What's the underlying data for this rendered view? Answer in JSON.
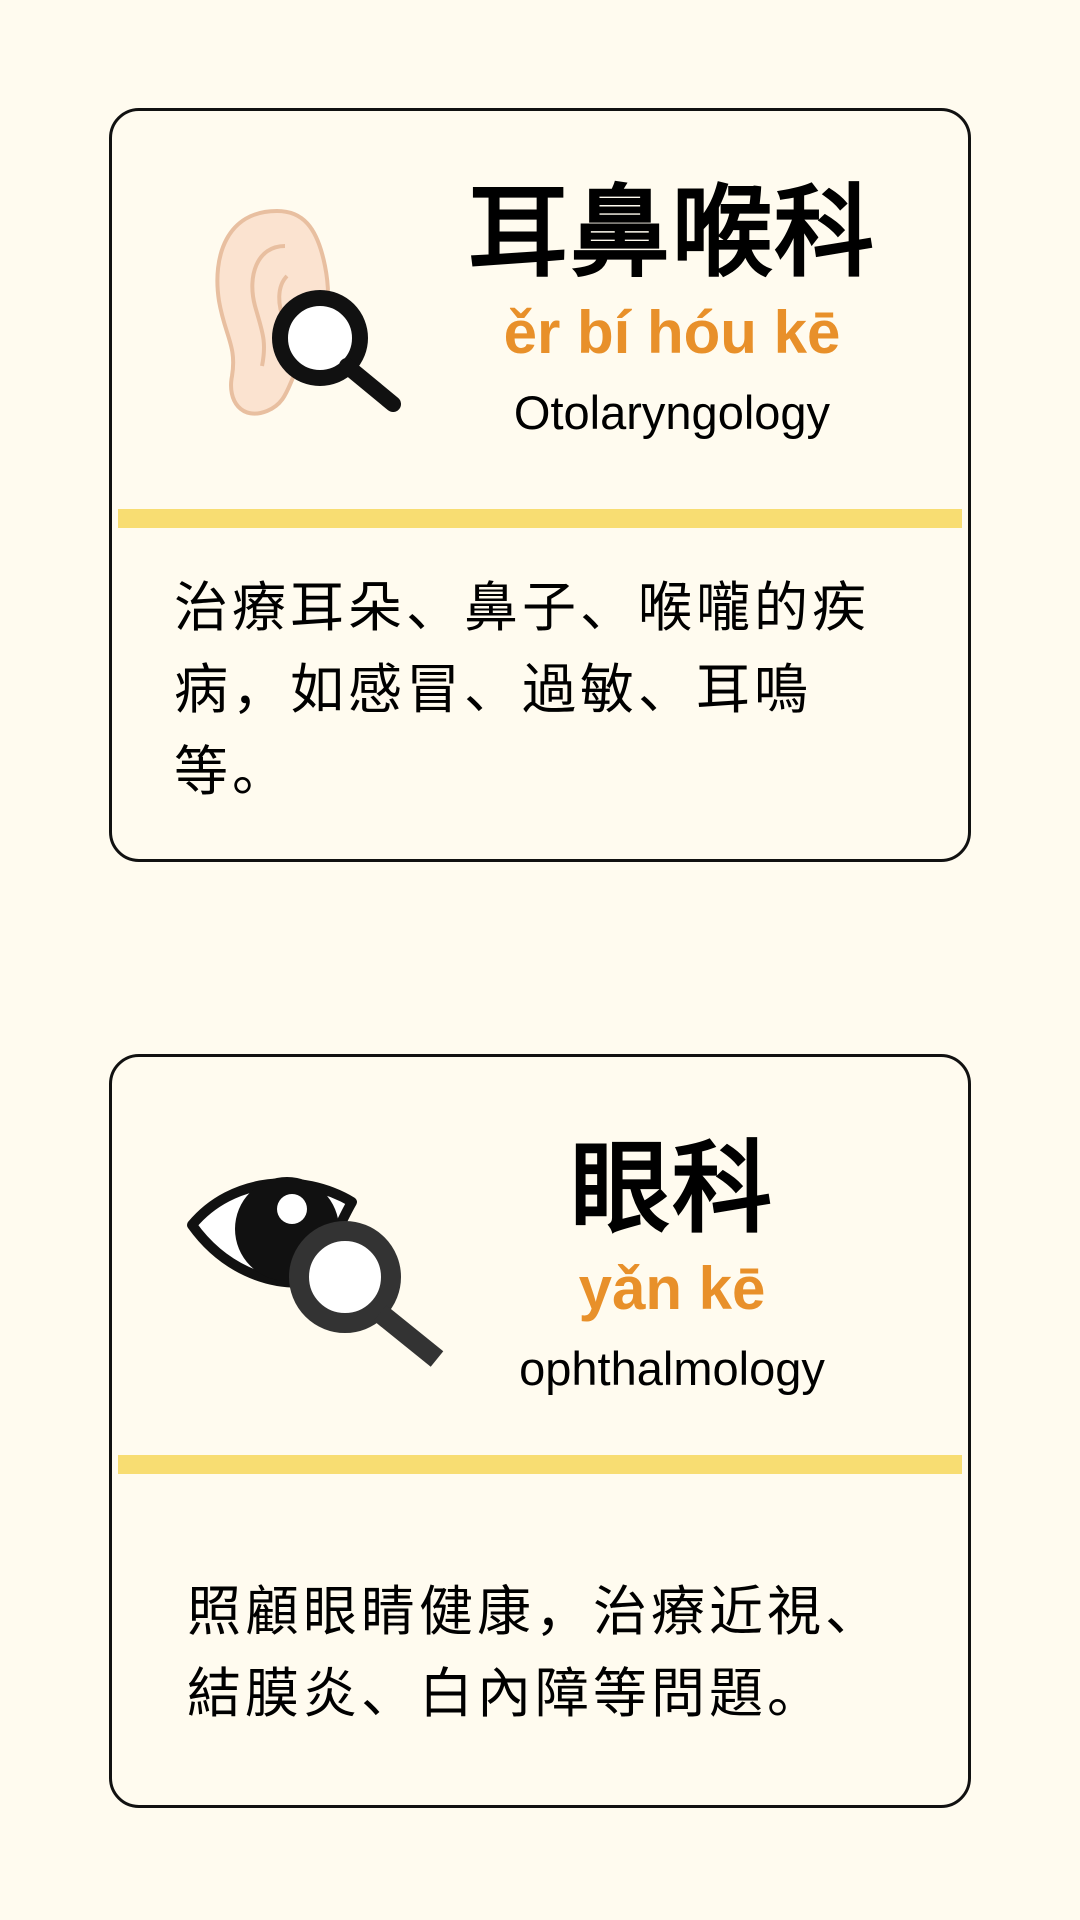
{
  "cards": [
    {
      "icon": "ear-magnifier-icon",
      "title": "耳鼻喉科",
      "pinyin": "ěr bí hóu kē",
      "english": "Otolaryngology",
      "description": "治療耳朵、鼻子、喉嚨的疾病，如感冒、過敏、耳鳴等。"
    },
    {
      "icon": "eye-magnifier-icon",
      "title": "眼科",
      "pinyin": "yǎn kē",
      "english": "ophthalmology",
      "description": "照顧眼睛健康，治療近視、結膜炎、白內障等問題。"
    }
  ],
  "colors": {
    "background": "#fffbef",
    "pinyin": "#e8902a",
    "divider": "#f8dd72",
    "ear_skin": "#fbe3d0",
    "ear_outline": "#e8bfa0"
  }
}
